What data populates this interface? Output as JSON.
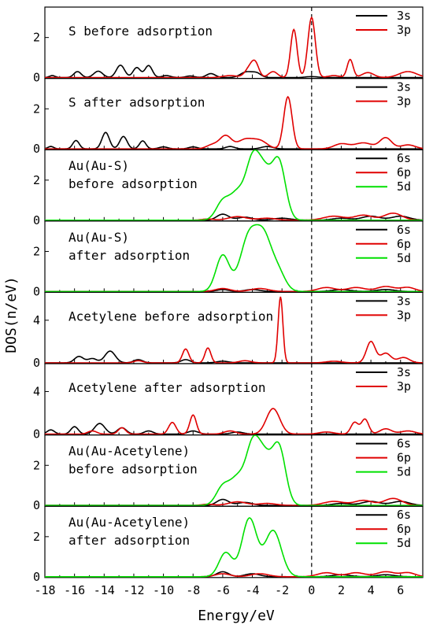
{
  "chart_data": {
    "type": "line",
    "xlabel": "Energy/eV",
    "ylabel": "DOS(n/eV)",
    "xlim": [
      -18,
      7.5
    ],
    "x_ticks": [
      "-18",
      "-16",
      "-14",
      "-12",
      "-10",
      "-8",
      "-6",
      "-4",
      "-2",
      "0",
      "2",
      "4",
      "6"
    ],
    "fermi_level": 0,
    "legend_position": "top-right",
    "series_colors": {
      "3s": "#000000",
      "6s": "#000000",
      "3p": "#e00000",
      "6p": "#e00000",
      "5d": "#00e000"
    },
    "panels": [
      {
        "title": "S before adsorption",
        "ylim": [
          0,
          3.4
        ],
        "y_ticks": [
          "0",
          "2"
        ],
        "series": [
          {
            "name": "3s",
            "peaks": [
              [
                -17.5,
                0.1,
                0.2
              ],
              [
                -15.8,
                0.3,
                0.25
              ],
              [
                -14.4,
                0.32,
                0.3
              ],
              [
                -12.9,
                0.62,
                0.28
              ],
              [
                -11.8,
                0.5,
                0.25
              ],
              [
                -11.0,
                0.6,
                0.25
              ],
              [
                -9.8,
                0.1,
                0.3
              ],
              [
                -8.2,
                0.08,
                0.3
              ],
              [
                -6.8,
                0.2,
                0.3
              ],
              [
                -4.4,
                0.28,
                0.4
              ],
              [
                -3.7,
                0.2,
                0.3
              ],
              [
                0.0,
                0.05,
                0.4
              ]
            ]
          },
          {
            "name": "3p",
            "peaks": [
              [
                -5.5,
                0.1,
                0.5
              ],
              [
                -4.2,
                0.45,
                0.3
              ],
              [
                -3.8,
                0.65,
                0.25
              ],
              [
                -2.6,
                0.3,
                0.3
              ],
              [
                -1.2,
                2.4,
                0.22
              ],
              [
                0.0,
                3.0,
                0.25
              ],
              [
                1.5,
                0.1,
                0.4
              ],
              [
                2.6,
                0.9,
                0.2
              ],
              [
                3.8,
                0.25,
                0.4
              ],
              [
                6.5,
                0.3,
                0.6
              ]
            ]
          }
        ]
      },
      {
        "title": "S after adsorption",
        "ylim": [
          0,
          3.4
        ],
        "y_ticks": [
          "0",
          "2"
        ],
        "series": [
          {
            "name": "3s",
            "peaks": [
              [
                -17.6,
                0.12,
                0.2
              ],
              [
                -15.9,
                0.42,
                0.22
              ],
              [
                -13.9,
                0.82,
                0.25
              ],
              [
                -12.7,
                0.62,
                0.25
              ],
              [
                -11.4,
                0.4,
                0.22
              ],
              [
                -10.0,
                0.1,
                0.3
              ],
              [
                -8.0,
                0.1,
                0.3
              ],
              [
                -5.5,
                0.12,
                0.3
              ],
              [
                -3.0,
                0.12,
                0.4
              ]
            ]
          },
          {
            "name": "3p",
            "peaks": [
              [
                -6.7,
                0.2,
                0.4
              ],
              [
                -5.8,
                0.65,
                0.4
              ],
              [
                -4.5,
                0.45,
                0.5
              ],
              [
                -3.5,
                0.4,
                0.5
              ],
              [
                -1.6,
                2.6,
                0.28
              ],
              [
                2.0,
                0.25,
                0.5
              ],
              [
                3.5,
                0.3,
                0.6
              ],
              [
                5.0,
                0.55,
                0.4
              ],
              [
                6.5,
                0.2,
                0.5
              ]
            ]
          }
        ]
      },
      {
        "title": "Au(Au-S) before adsorption",
        "ylim": [
          0,
          3.4
        ],
        "y_ticks": [
          "0",
          "2"
        ],
        "series": [
          {
            "name": "6s",
            "peaks": [
              [
                -6.0,
                0.3,
                0.4
              ],
              [
                -4.5,
                0.15,
                0.5
              ],
              [
                -2.0,
                0.1,
                0.6
              ],
              [
                2.0,
                0.1,
                0.6
              ],
              [
                4.0,
                0.2,
                0.6
              ],
              [
                6.0,
                0.2,
                0.6
              ]
            ]
          },
          {
            "name": "6p",
            "peaks": [
              [
                -7.0,
                0.06,
                0.4
              ],
              [
                -5.0,
                0.18,
                0.6
              ],
              [
                -3.0,
                0.1,
                0.6
              ],
              [
                1.5,
                0.2,
                0.7
              ],
              [
                3.5,
                0.25,
                0.6
              ],
              [
                5.5,
                0.35,
                0.6
              ]
            ]
          },
          {
            "name": "5d",
            "peaks": [
              [
                -6.0,
                0.9,
                0.45
              ],
              [
                -5.0,
                1.3,
                0.5
              ],
              [
                -4.0,
                2.6,
                0.45
              ],
              [
                -3.2,
                2.2,
                0.5
              ],
              [
                -2.2,
                2.8,
                0.45
              ]
            ]
          }
        ]
      },
      {
        "title": "Au(Au-S) after adsorption",
        "ylim": [
          0,
          3.4
        ],
        "y_ticks": [
          "0",
          "2"
        ],
        "series": [
          {
            "name": "6s",
            "peaks": [
              [
                -6.0,
                0.1,
                0.4
              ],
              [
                -4.0,
                0.1,
                0.5
              ],
              [
                2.0,
                0.1,
                0.6
              ],
              [
                5.0,
                0.1,
                0.6
              ]
            ]
          },
          {
            "name": "6p",
            "peaks": [
              [
                -6.0,
                0.15,
                0.5
              ],
              [
                -3.5,
                0.15,
                0.6
              ],
              [
                1.0,
                0.2,
                0.6
              ],
              [
                3.0,
                0.2,
                0.6
              ],
              [
                5.0,
                0.25,
                0.6
              ],
              [
                6.5,
                0.2,
                0.5
              ]
            ]
          },
          {
            "name": "5d",
            "peaks": [
              [
                -6.0,
                1.8,
                0.45
              ],
              [
                -4.2,
                2.8,
                0.6
              ],
              [
                -3.2,
                2.2,
                0.5
              ],
              [
                -2.3,
                1.0,
                0.5
              ]
            ]
          }
        ]
      },
      {
        "title": "Acetylene before adsorption",
        "ylim": [
          0,
          6.4
        ],
        "y_ticks": [
          "0",
          "4"
        ],
        "series": [
          {
            "name": "3s",
            "peaks": [
              [
                -15.7,
                0.6,
                0.3
              ],
              [
                -14.8,
                0.4,
                0.3
              ],
              [
                -13.6,
                1.1,
                0.35
              ],
              [
                -11.7,
                0.3,
                0.3
              ],
              [
                -8.5,
                0.3,
                0.3
              ],
              [
                -6.0,
                0.15,
                0.4
              ]
            ]
          },
          {
            "name": "3p",
            "peaks": [
              [
                -11.7,
                0.2,
                0.3
              ],
              [
                -8.5,
                1.3,
                0.22
              ],
              [
                -7.0,
                1.4,
                0.2
              ],
              [
                -4.5,
                0.2,
                0.4
              ],
              [
                -2.1,
                6.2,
                0.16
              ],
              [
                1.5,
                0.15,
                0.5
              ],
              [
                4.0,
                2.0,
                0.3
              ],
              [
                5.0,
                0.9,
                0.35
              ],
              [
                6.2,
                0.5,
                0.4
              ]
            ]
          }
        ]
      },
      {
        "title": "Acetylene after adsorption",
        "ylim": [
          0,
          6.4
        ],
        "y_ticks": [
          "0",
          "4"
        ],
        "series": [
          {
            "name": "3s",
            "peaks": [
              [
                -17.6,
                0.4,
                0.25
              ],
              [
                -16.0,
                0.7,
                0.25
              ],
              [
                -14.3,
                1.0,
                0.35
              ],
              [
                -12.8,
                0.6,
                0.3
              ],
              [
                -11.0,
                0.3,
                0.3
              ],
              [
                -8.0,
                0.3,
                0.35
              ],
              [
                -5.0,
                0.2,
                0.4
              ]
            ]
          },
          {
            "name": "3p",
            "peaks": [
              [
                -14.8,
                0.3,
                0.3
              ],
              [
                -12.8,
                0.6,
                0.25
              ],
              [
                -9.4,
                1.1,
                0.25
              ],
              [
                -8.0,
                1.8,
                0.22
              ],
              [
                -5.5,
                0.3,
                0.4
              ],
              [
                -2.6,
                2.4,
                0.45
              ],
              [
                1.0,
                0.2,
                0.5
              ],
              [
                2.9,
                1.1,
                0.25
              ],
              [
                3.6,
                1.4,
                0.25
              ],
              [
                5.0,
                0.5,
                0.4
              ],
              [
                6.5,
                0.3,
                0.5
              ]
            ]
          }
        ]
      },
      {
        "title": "Au(Au-Acetylene) before adsorption",
        "ylim": [
          0,
          3.4
        ],
        "y_ticks": [
          "0",
          "2"
        ],
        "series": [
          {
            "name": "6s",
            "peaks": [
              [
                -6.0,
                0.3,
                0.4
              ],
              [
                -4.5,
                0.15,
                0.5
              ],
              [
                2.0,
                0.1,
                0.6
              ],
              [
                4.0,
                0.2,
                0.6
              ],
              [
                6.0,
                0.2,
                0.6
              ]
            ]
          },
          {
            "name": "6p",
            "peaks": [
              [
                -7.0,
                0.06,
                0.4
              ],
              [
                -5.0,
                0.18,
                0.6
              ],
              [
                -3.0,
                0.1,
                0.6
              ],
              [
                1.5,
                0.2,
                0.7
              ],
              [
                3.5,
                0.25,
                0.6
              ],
              [
                5.5,
                0.35,
                0.6
              ]
            ]
          },
          {
            "name": "5d",
            "peaks": [
              [
                -6.0,
                0.9,
                0.45
              ],
              [
                -5.0,
                1.3,
                0.5
              ],
              [
                -4.0,
                2.6,
                0.45
              ],
              [
                -3.2,
                2.2,
                0.5
              ],
              [
                -2.2,
                2.8,
                0.45
              ]
            ]
          }
        ]
      },
      {
        "title": "Au(Au-Acetylene) after adsorption",
        "ylim": [
          0,
          3.4
        ],
        "y_ticks": [
          "0",
          "2"
        ],
        "series": [
          {
            "name": "6s",
            "peaks": [
              [
                -6.0,
                0.25,
                0.4
              ],
              [
                -4.0,
                0.15,
                0.5
              ],
              [
                2.0,
                0.1,
                0.6
              ],
              [
                5.0,
                0.1,
                0.6
              ]
            ]
          },
          {
            "name": "6p",
            "peaks": [
              [
                -6.0,
                0.15,
                0.5
              ],
              [
                -3.5,
                0.15,
                0.6
              ],
              [
                1.0,
                0.2,
                0.6
              ],
              [
                3.0,
                0.2,
                0.6
              ],
              [
                5.0,
                0.25,
                0.6
              ],
              [
                6.5,
                0.2,
                0.5
              ]
            ]
          },
          {
            "name": "5d",
            "peaks": [
              [
                -5.8,
                1.2,
                0.45
              ],
              [
                -4.2,
                2.9,
                0.5
              ],
              [
                -2.6,
                2.3,
                0.55
              ]
            ]
          }
        ]
      }
    ]
  }
}
